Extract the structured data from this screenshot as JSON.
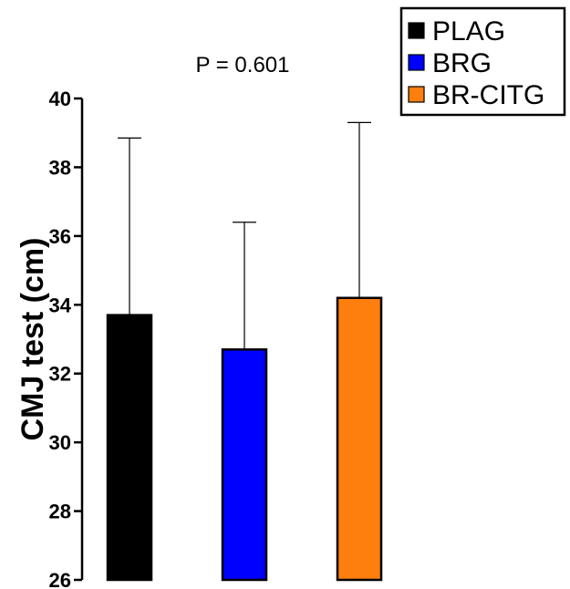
{
  "chart_data": {
    "type": "bar",
    "categories": [
      "PLAG",
      "BRG",
      "BR-CITG"
    ],
    "values": [
      33.7,
      32.7,
      34.2
    ],
    "error_upper": [
      38.85,
      36.4,
      39.3
    ],
    "colors": [
      "#000000",
      "#0000ff",
      "#ff7f0e"
    ],
    "ylabel": "CMJ test (cm)",
    "xlabel": "",
    "ylim": [
      26,
      40
    ],
    "yticks": [
      26,
      28,
      30,
      32,
      34,
      36,
      38,
      40
    ],
    "annotation": "P = 0.601",
    "legend": {
      "placement": "top-right",
      "entries": [
        "PLAG",
        "BRG",
        "BR-CITG"
      ]
    },
    "grid": false
  }
}
